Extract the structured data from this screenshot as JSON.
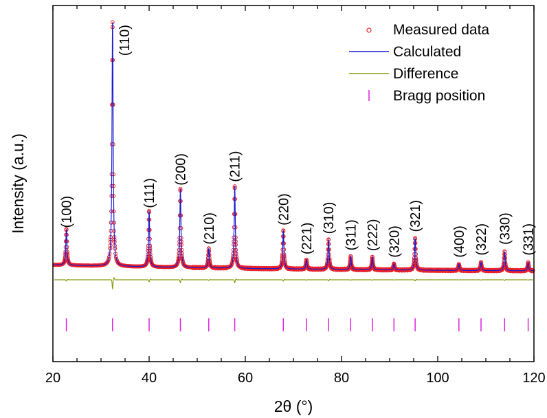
{
  "chart_data": {
    "type": "line",
    "title": "",
    "xlabel": "2θ (°)",
    "ylabel": "Intensity (a.u.)",
    "xlim": [
      20,
      120
    ],
    "x_ticks": [
      20,
      40,
      60,
      80,
      100,
      120
    ],
    "y_ticks_shown": false,
    "grid": false,
    "legend_position": "top-right",
    "colors": {
      "measured": "#e8202a",
      "calculated": "#1a1acc",
      "difference": "#8a9a10",
      "bragg": "#e020e0"
    },
    "series": [
      {
        "name": "Measured data",
        "marker": "open-circle"
      },
      {
        "name": "Calculated",
        "marker": "line"
      },
      {
        "name": "Difference",
        "marker": "line"
      },
      {
        "name": "Bragg position",
        "marker": "vertical-tick"
      }
    ],
    "peaks": [
      {
        "two_theta": 22.8,
        "hkl": "(100)",
        "intensity": 0.148
      },
      {
        "two_theta": 32.4,
        "hkl": "(110)",
        "intensity": 1.0
      },
      {
        "two_theta": 40.0,
        "hkl": "(111)",
        "intensity": 0.229
      },
      {
        "two_theta": 46.5,
        "hkl": "(200)",
        "intensity": 0.322
      },
      {
        "two_theta": 52.4,
        "hkl": "(210)",
        "intensity": 0.08
      },
      {
        "two_theta": 57.8,
        "hkl": "(211)",
        "intensity": 0.336
      },
      {
        "two_theta": 67.9,
        "hkl": "(220)",
        "intensity": 0.158
      },
      {
        "two_theta": 72.7,
        "hkl": "(221)",
        "intensity": 0.039
      },
      {
        "two_theta": 77.3,
        "hkl": "(310)",
        "intensity": 0.123
      },
      {
        "two_theta": 81.9,
        "hkl": "(311)",
        "intensity": 0.055
      },
      {
        "two_theta": 86.4,
        "hkl": "(222)",
        "intensity": 0.053
      },
      {
        "two_theta": 90.9,
        "hkl": "(320)",
        "intensity": 0.026
      },
      {
        "two_theta": 95.3,
        "hkl": "(321)",
        "intensity": 0.131
      },
      {
        "two_theta": 104.4,
        "hkl": "(400)",
        "intensity": 0.026
      },
      {
        "two_theta": 109.0,
        "hkl": "(322)",
        "intensity": 0.035
      },
      {
        "two_theta": 113.9,
        "hkl": "(330)",
        "intensity": 0.079
      },
      {
        "two_theta": 118.8,
        "hkl": "(331)",
        "intensity": 0.035
      }
    ]
  }
}
